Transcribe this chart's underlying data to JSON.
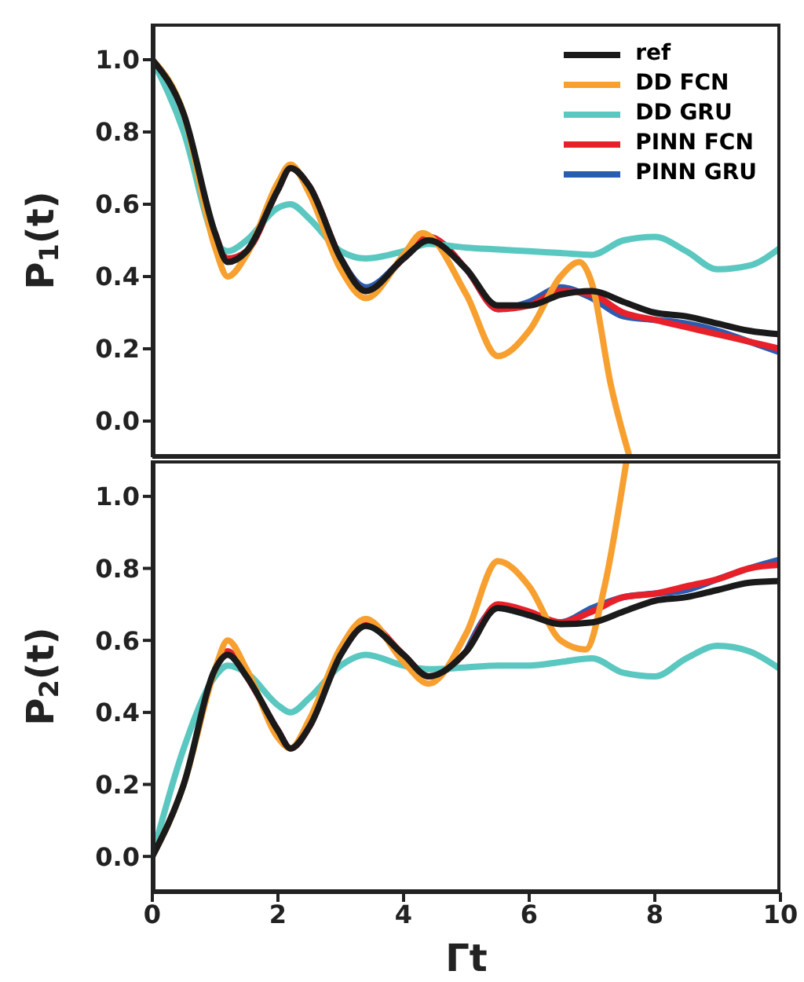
{
  "chart_data": [
    {
      "type": "line",
      "ylabel": "P$_{1}$(t)",
      "legend": "top right",
      "tick_labels": "y",
      "x": [
        0,
        0.5,
        1,
        1.2,
        1.5,
        2,
        2.2,
        2.5,
        3,
        3.4,
        4,
        4.4,
        5,
        5.5,
        6,
        6.5,
        7,
        7.5,
        8,
        8.5,
        9,
        9.5,
        10
      ],
      "xlim": [
        0,
        10
      ],
      "xticks": [
        0,
        2,
        4,
        6,
        8,
        10
      ],
      "ylim": [
        -0.1,
        1.1
      ],
      "yticks": [
        {
          "value": 0,
          "label": "0.0"
        },
        {
          "value": 0.2,
          "label": "0.2"
        },
        {
          "value": 0.4,
          "label": "0.4"
        },
        {
          "value": 0.6,
          "label": "0.6"
        },
        {
          "value": 0.8,
          "label": "0.8"
        },
        {
          "value": 1,
          "label": "1.0"
        }
      ],
      "series": [
        {
          "name": "ref",
          "color": "#1a1a1a",
          "values": [
            1.0,
            0.85,
            0.52,
            0.44,
            0.47,
            0.64,
            0.7,
            0.65,
            0.45,
            0.36,
            0.45,
            0.5,
            0.42,
            0.32,
            0.32,
            0.35,
            0.36,
            0.33,
            0.3,
            0.29,
            0.27,
            0.25,
            0.24
          ]
        },
        {
          "name": "DD FCN",
          "color": "#f7a030",
          "x": [
            0,
            0.5,
            1,
            1.2,
            1.5,
            2,
            2.2,
            2.5,
            3,
            3.4,
            4,
            4.3,
            5,
            5.5,
            6,
            6.5,
            6.8,
            7,
            7.3,
            7.6
          ],
          "values": [
            1.0,
            0.85,
            0.48,
            0.4,
            0.46,
            0.66,
            0.71,
            0.63,
            0.42,
            0.34,
            0.46,
            0.52,
            0.35,
            0.18,
            0.25,
            0.4,
            0.44,
            0.38,
            0.1,
            -0.1
          ]
        },
        {
          "name": "DD GRU",
          "color": "#5ac8c0",
          "values": [
            1.0,
            0.8,
            0.5,
            0.47,
            0.5,
            0.59,
            0.6,
            0.56,
            0.47,
            0.45,
            0.47,
            0.49,
            0.48,
            0.475,
            0.47,
            0.465,
            0.46,
            0.5,
            0.51,
            0.47,
            0.42,
            0.43,
            0.48
          ]
        },
        {
          "name": "PINN FCN",
          "color": "#e8202a",
          "values": [
            null,
            null,
            0.52,
            0.45,
            0.47,
            0.64,
            0.7,
            0.65,
            0.45,
            0.36,
            0.45,
            0.51,
            0.42,
            0.31,
            0.32,
            0.36,
            0.35,
            0.3,
            0.28,
            0.26,
            0.24,
            0.22,
            0.2
          ]
        },
        {
          "name": "PINN GRU",
          "color": "#2a5cb0",
          "values": [
            null,
            null,
            null,
            null,
            null,
            null,
            null,
            null,
            0.45,
            0.37,
            0.45,
            0.51,
            0.42,
            0.31,
            0.33,
            0.37,
            0.34,
            0.29,
            0.28,
            0.27,
            0.25,
            0.22,
            0.19
          ]
        }
      ]
    },
    {
      "type": "line",
      "ylabel": "P$_{2}$(t)",
      "xlabel": "Γt",
      "x": [
        0,
        0.5,
        1,
        1.2,
        1.5,
        2,
        2.2,
        2.5,
        3,
        3.4,
        4,
        4.4,
        5,
        5.5,
        6,
        6.5,
        7,
        7.5,
        8,
        8.5,
        9,
        9.5,
        10
      ],
      "xlim": [
        0,
        10
      ],
      "xticks": [
        0,
        2,
        4,
        6,
        8,
        10
      ],
      "ylim": [
        -0.1,
        1.1
      ],
      "yticks": [
        {
          "value": 0,
          "label": "0.0"
        },
        {
          "value": 0.2,
          "label": "0.2"
        },
        {
          "value": 0.4,
          "label": "0.4"
        },
        {
          "value": 0.6,
          "label": "0.6"
        },
        {
          "value": 0.8,
          "label": "0.8"
        },
        {
          "value": 1,
          "label": "1.0"
        }
      ],
      "series": [
        {
          "color": "#1a1a1a",
          "values": [
            0.0,
            0.2,
            0.52,
            0.56,
            0.5,
            0.35,
            0.3,
            0.36,
            0.56,
            0.64,
            0.56,
            0.5,
            0.57,
            0.69,
            0.67,
            0.645,
            0.65,
            0.68,
            0.71,
            0.72,
            0.74,
            0.76,
            0.765
          ]
        },
        {
          "color": "#f7a030",
          "x": [
            0,
            0.5,
            1,
            1.2,
            1.5,
            2,
            2.2,
            2.5,
            3,
            3.4,
            4,
            4.4,
            5,
            5.5,
            6,
            6.5,
            6.9,
            7.2,
            7.55
          ],
          "values": [
            0.0,
            0.2,
            0.52,
            0.6,
            0.52,
            0.33,
            0.3,
            0.38,
            0.58,
            0.66,
            0.54,
            0.48,
            0.62,
            0.82,
            0.75,
            0.6,
            0.575,
            0.75,
            1.1
          ]
        },
        {
          "color": "#5ac8c0",
          "values": [
            0.0,
            0.3,
            0.5,
            0.53,
            0.51,
            0.42,
            0.4,
            0.44,
            0.53,
            0.56,
            0.53,
            0.52,
            0.525,
            0.53,
            0.53,
            0.54,
            0.55,
            0.51,
            0.5,
            0.55,
            0.585,
            0.57,
            0.52
          ]
        },
        {
          "color": "#e8202a",
          "values": [
            null,
            null,
            0.52,
            0.57,
            0.5,
            0.35,
            0.3,
            0.36,
            0.57,
            0.65,
            0.56,
            0.5,
            0.57,
            0.7,
            0.68,
            0.65,
            0.68,
            0.72,
            0.73,
            0.75,
            0.77,
            0.8,
            0.81
          ]
        },
        {
          "color": "#2a5cb0",
          "values": [
            null,
            null,
            null,
            null,
            null,
            null,
            null,
            null,
            null,
            null,
            null,
            null,
            0.57,
            0.69,
            0.67,
            0.65,
            0.69,
            0.72,
            0.73,
            0.74,
            0.77,
            0.8,
            0.825
          ]
        }
      ]
    }
  ]
}
